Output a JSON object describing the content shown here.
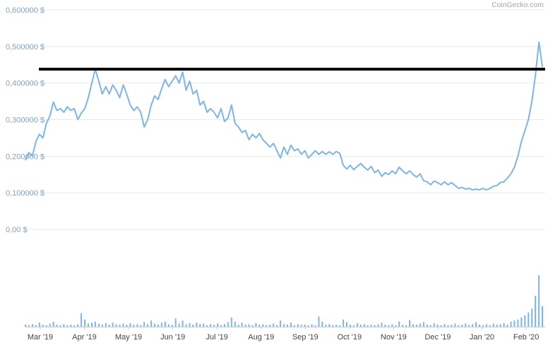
{
  "watermark": "CoinGecko.com",
  "colors": {
    "line": "#7cb5ec",
    "volume": "#7cb5ec",
    "grid": "#e9e9e9",
    "axis_line": "#cccccc",
    "annotation": "#000000",
    "y_label": "#85a3bd",
    "x_label": "#444444",
    "background": "#ffffff"
  },
  "chart_data": {
    "type": "line",
    "title": "",
    "xlabel": "",
    "ylabel": "",
    "legend": "none",
    "grid": true,
    "ylim": [
      0,
      0.6
    ],
    "y_ticks": {
      "values": [
        0,
        0.1,
        0.2,
        0.3,
        0.4,
        0.5,
        0.6
      ],
      "labels": [
        "0,00 $",
        "0,100000 $",
        "0,200000 $",
        "0,300000 $",
        "0,400000 $",
        "0,500000 $",
        "0,600000 $"
      ]
    },
    "x_ticks": [
      "Mar '19",
      "Apr '19",
      "May '19",
      "Jun '19",
      "Jul '19",
      "Aug '19",
      "Sep '19",
      "Oct '19",
      "Nov '19",
      "Dec '19",
      "Jan '20",
      "Feb '20"
    ],
    "annotation": {
      "type": "horizontal-line",
      "value": 0.438
    },
    "price": [
      0.19,
      0.21,
      0.2,
      0.24,
      0.26,
      0.25,
      0.29,
      0.31,
      0.348,
      0.325,
      0.33,
      0.32,
      0.335,
      0.325,
      0.33,
      0.3,
      0.318,
      0.33,
      0.36,
      0.4,
      0.438,
      0.405,
      0.37,
      0.39,
      0.37,
      0.395,
      0.38,
      0.36,
      0.395,
      0.37,
      0.34,
      0.325,
      0.335,
      0.32,
      0.28,
      0.3,
      0.34,
      0.365,
      0.355,
      0.385,
      0.41,
      0.39,
      0.405,
      0.42,
      0.4,
      0.43,
      0.38,
      0.405,
      0.37,
      0.38,
      0.34,
      0.35,
      0.32,
      0.33,
      0.32,
      0.305,
      0.33,
      0.295,
      0.305,
      0.34,
      0.29,
      0.28,
      0.265,
      0.27,
      0.245,
      0.26,
      0.25,
      0.262,
      0.245,
      0.235,
      0.225,
      0.235,
      0.215,
      0.195,
      0.225,
      0.205,
      0.23,
      0.215,
      0.22,
      0.205,
      0.215,
      0.195,
      0.205,
      0.215,
      0.205,
      0.213,
      0.205,
      0.212,
      0.205,
      0.213,
      0.208,
      0.175,
      0.165,
      0.175,
      0.163,
      0.172,
      0.18,
      0.17,
      0.162,
      0.172,
      0.155,
      0.162,
      0.145,
      0.155,
      0.15,
      0.16,
      0.152,
      0.17,
      0.16,
      0.152,
      0.16,
      0.15,
      0.143,
      0.152,
      0.133,
      0.13,
      0.122,
      0.132,
      0.128,
      0.122,
      0.13,
      0.122,
      0.128,
      0.12,
      0.112,
      0.115,
      0.11,
      0.112,
      0.108,
      0.11,
      0.108,
      0.112,
      0.108,
      0.112,
      0.118,
      0.12,
      0.128,
      0.13,
      0.14,
      0.152,
      0.17,
      0.2,
      0.24,
      0.27,
      0.3,
      0.35,
      0.42,
      0.512,
      0.445
    ],
    "volume": [
      4,
      3,
      5,
      3,
      8,
      4,
      3,
      6,
      10,
      4,
      3,
      5,
      3,
      4,
      3,
      5,
      26,
      14,
      6,
      8,
      10,
      6,
      4,
      7,
      4,
      8,
      5,
      4,
      6,
      4,
      7,
      4,
      5,
      3,
      9,
      5,
      12,
      6,
      4,
      8,
      10,
      5,
      4,
      16,
      6,
      12,
      5,
      7,
      4,
      8,
      5,
      6,
      3,
      5,
      4,
      6,
      3,
      5,
      9,
      18,
      10,
      4,
      8,
      4,
      5,
      3,
      7,
      4,
      5,
      3,
      4,
      6,
      3,
      12,
      5,
      4,
      8,
      3,
      5,
      4,
      4,
      3,
      5,
      3,
      20,
      10,
      4,
      5,
      3,
      4,
      3,
      14,
      9,
      4,
      3,
      7,
      4,
      5,
      3,
      4,
      3,
      5,
      8,
      4,
      3,
      5,
      3,
      10,
      4,
      3,
      13,
      5,
      4,
      6,
      9,
      4,
      3,
      7,
      4,
      3,
      5,
      3,
      4,
      6,
      3,
      4,
      6,
      3,
      5,
      9,
      4,
      3,
      5,
      3,
      6,
      4,
      5,
      7,
      4,
      10,
      12,
      14,
      18,
      22,
      28,
      35,
      60,
      100,
      40
    ]
  }
}
